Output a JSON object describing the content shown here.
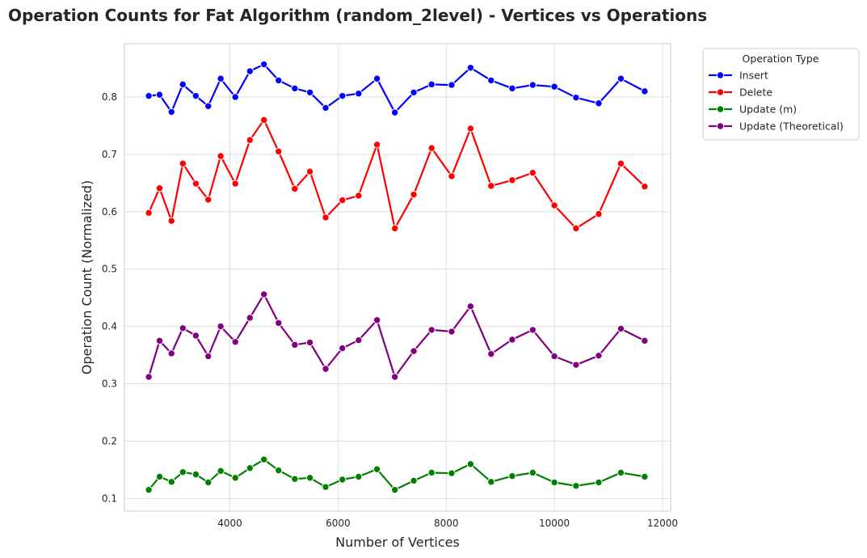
{
  "chart_data": {
    "type": "line",
    "title": "Operation Counts for Fat Algorithm (random_2level) - Vertices vs Operations",
    "xlabel": "Number of Vertices",
    "ylabel": "Operation Count (Normalized)",
    "xlim": [
      2050,
      12150
    ],
    "ylim": [
      0.078,
      0.893
    ],
    "xticks": [
      4000,
      6000,
      8000,
      10000,
      12000
    ],
    "yticks": [
      0.1,
      0.2,
      0.3,
      0.4,
      0.5,
      0.6,
      0.7,
      0.8
    ],
    "grid": true,
    "legend": {
      "title": "Operation Type",
      "placement": "outside-top-right"
    },
    "x": [
      2500,
      2700,
      2920,
      3130,
      3370,
      3600,
      3830,
      4100,
      4370,
      4630,
      4900,
      5200,
      5480,
      5770,
      6080,
      6380,
      6720,
      7050,
      7400,
      7730,
      8100,
      8450,
      8830,
      9220,
      9600,
      10000,
      10400,
      10820,
      11230,
      11670
    ],
    "series": [
      {
        "name": "Insert",
        "color": "#0000ff",
        "values": [
          0.802,
          0.804,
          0.774,
          0.822,
          0.802,
          0.784,
          0.832,
          0.8,
          0.845,
          0.857,
          0.829,
          0.815,
          0.808,
          0.781,
          0.802,
          0.806,
          0.832,
          0.773,
          0.808,
          0.822,
          0.821,
          0.851,
          0.829,
          0.815,
          0.821,
          0.818,
          0.799,
          0.789,
          0.832,
          0.81
        ]
      },
      {
        "name": "Delete",
        "color": "#ff0000",
        "values": [
          0.598,
          0.641,
          0.584,
          0.684,
          0.649,
          0.621,
          0.697,
          0.649,
          0.725,
          0.76,
          0.705,
          0.64,
          0.67,
          0.59,
          0.62,
          0.628,
          0.717,
          0.571,
          0.63,
          0.711,
          0.662,
          0.745,
          0.645,
          0.655,
          0.668,
          0.611,
          0.571,
          0.596,
          0.684,
          0.644
        ]
      },
      {
        "name": "Update (m)",
        "color": "#008000",
        "values": [
          0.115,
          0.138,
          0.129,
          0.146,
          0.142,
          0.128,
          0.148,
          0.136,
          0.153,
          0.168,
          0.149,
          0.134,
          0.136,
          0.12,
          0.133,
          0.138,
          0.151,
          0.115,
          0.131,
          0.145,
          0.144,
          0.16,
          0.129,
          0.139,
          0.145,
          0.128,
          0.122,
          0.128,
          0.145,
          0.138
        ]
      },
      {
        "name": "Update (Theoretical)",
        "color": "#800080",
        "values": [
          0.312,
          0.375,
          0.353,
          0.397,
          0.384,
          0.348,
          0.4,
          0.373,
          0.415,
          0.456,
          0.406,
          0.368,
          0.372,
          0.326,
          0.362,
          0.376,
          0.411,
          0.312,
          0.357,
          0.394,
          0.391,
          0.435,
          0.352,
          0.377,
          0.394,
          0.348,
          0.333,
          0.349,
          0.396,
          0.375
        ]
      }
    ]
  }
}
